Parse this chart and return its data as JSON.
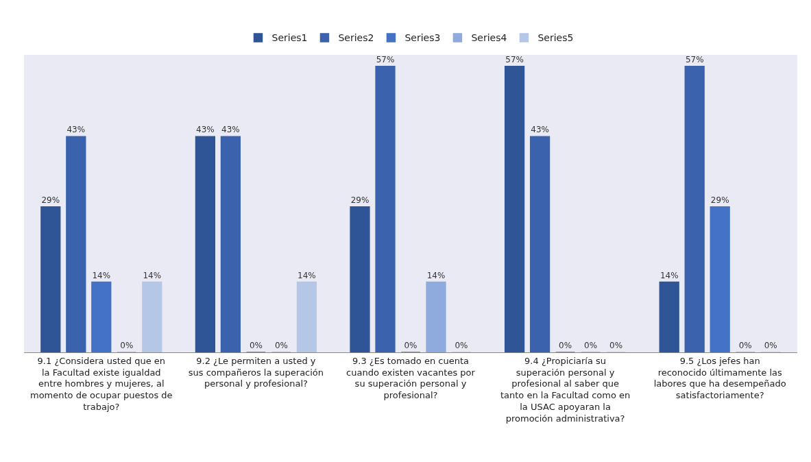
{
  "chart_data": {
    "type": "bar",
    "categories": [
      "9.1 ¿Considera usted que en la Facultad existe igualdad entre hombres y mujeres, al momento de ocupar puestos de trabajo?",
      "9.2 ¿Le permiten a usted y sus compañeros la superación personal y profesional?",
      "9.3 ¿Es tomado en cuenta cuando existen vacantes por su superación personal y profesional?",
      "9.4 ¿Propiciaría su superación personal y profesional al saber que tanto en la Facultad como en la USAC apoyaran la promoción administrativa?",
      "9.5 ¿Los jefes han reconocido últimamente las labores que ha desempeñado satisfactoriamente?"
    ],
    "series": [
      {
        "name": "Series1",
        "color": "#2f5597",
        "values": [
          29,
          43,
          29,
          57,
          14
        ],
        "value_labels": [
          "29%",
          "43%",
          "29%",
          "57%",
          "14%"
        ]
      },
      {
        "name": "Series2",
        "color": "#3a62ad",
        "values": [
          43,
          43,
          57,
          43,
          57
        ],
        "value_labels": [
          "43%",
          "43%",
          "57%",
          "43%",
          "57%"
        ]
      },
      {
        "name": "Series3",
        "color": "#4472c4",
        "values": [
          14,
          0,
          0,
          0,
          29
        ],
        "value_labels": [
          "14%",
          "0%",
          "0%",
          "0%",
          "29%"
        ]
      },
      {
        "name": "Series4",
        "color": "#8faadc",
        "values": [
          0,
          0,
          14,
          0,
          0
        ],
        "value_labels": [
          "0%",
          "0%",
          "14%",
          "0%",
          "0%"
        ]
      },
      {
        "name": "Series5",
        "color": "#b4c7e7",
        "values": [
          14,
          14,
          0,
          0,
          0
        ],
        "value_labels": [
          "14%",
          "14%",
          "0%",
          "0%",
          "0%"
        ]
      }
    ],
    "grid": false,
    "legend": "top"
  }
}
